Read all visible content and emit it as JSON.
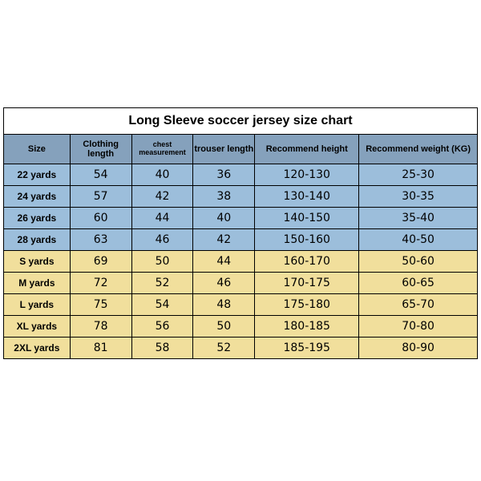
{
  "title": "Long Sleeve soccer jersey size chart",
  "columns": [
    "Size",
    "Clothing length",
    "chest measurement",
    "trouser length",
    "Recommend height",
    "Recommend weight (KG)"
  ],
  "column_widths_pct": [
    14,
    13,
    13,
    13,
    22,
    25
  ],
  "header_bg": "#85a1bc",
  "blue_bg": "#9cbedb",
  "yellow_bg": "#f1df9c",
  "border_color": "#000000",
  "title_fontsize": 16,
  "header_fontsize": 11,
  "cell_fontsize": 13,
  "rows": [
    {
      "group": "blue",
      "cells": [
        "22 yards",
        "54",
        "40",
        "36",
        "120-130",
        "25-30"
      ]
    },
    {
      "group": "blue",
      "cells": [
        "24 yards",
        "57",
        "42",
        "38",
        "130-140",
        "30-35"
      ]
    },
    {
      "group": "blue",
      "cells": [
        "26 yards",
        "60",
        "44",
        "40",
        "140-150",
        "35-40"
      ]
    },
    {
      "group": "blue",
      "cells": [
        "28 yards",
        "63",
        "46",
        "42",
        "150-160",
        "40-50"
      ]
    },
    {
      "group": "yellow",
      "cells": [
        "S yards",
        "69",
        "50",
        "44",
        "160-170",
        "50-60"
      ]
    },
    {
      "group": "yellow",
      "cells": [
        "M yards",
        "72",
        "52",
        "46",
        "170-175",
        "60-65"
      ]
    },
    {
      "group": "yellow",
      "cells": [
        "L yards",
        "75",
        "54",
        "48",
        "175-180",
        "65-70"
      ]
    },
    {
      "group": "yellow",
      "cells": [
        "XL yards",
        "78",
        "56",
        "50",
        "180-185",
        "70-80"
      ]
    },
    {
      "group": "yellow",
      "cells": [
        "2XL yards",
        "81",
        "58",
        "52",
        "185-195",
        "80-90"
      ]
    }
  ]
}
